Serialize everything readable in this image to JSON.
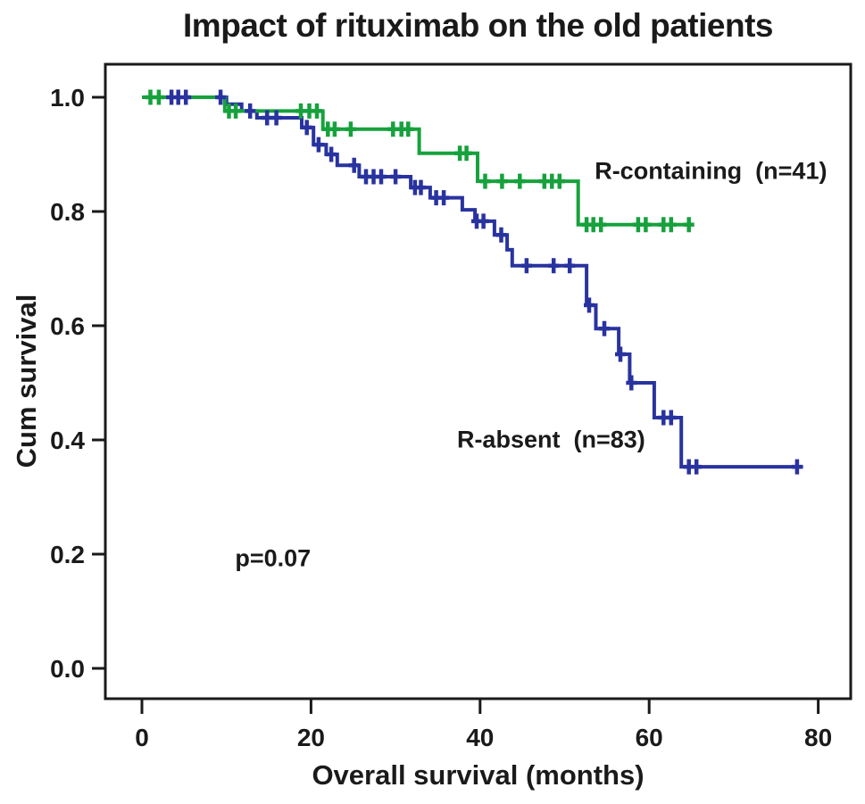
{
  "page": {
    "background": "#ffffff",
    "text_color": "#1a1a1a"
  },
  "chart_data": {
    "type": "line",
    "variant": "kaplan_meier_step",
    "title": "Impact of rituximab on the old patients",
    "xlabel": "Overall survival (months)",
    "ylabel": "Cum survival",
    "x_ticks": [
      0,
      20,
      40,
      60,
      80
    ],
    "y_ticks": [
      "0.0",
      "0.2",
      "0.4",
      "0.6",
      "0.8",
      "1.0"
    ],
    "xlim": [
      -4.3,
      83.8
    ],
    "ylim": [
      -0.053,
      1.058
    ],
    "grid": false,
    "frame_color": "#1a1a1a",
    "legend_position": "inline-annotations",
    "annotations": [
      {
        "text": "p=0.07",
        "x": 15.5,
        "y": 0.192
      }
    ],
    "series": [
      {
        "name": "R-containing (n=41)",
        "n": 41,
        "color": "#17A13D",
        "label": {
          "text": "R-containing  (n=41)",
          "x": 67.3,
          "y": 0.87
        },
        "steps": [
          [
            0,
            1.0
          ],
          [
            9.8,
            0.976
          ],
          [
            21.4,
            0.944
          ],
          [
            32.8,
            0.902
          ],
          [
            39.7,
            0.853
          ],
          [
            51.6,
            0.777
          ]
        ],
        "end_t": 65.0,
        "censors": [
          [
            1.0,
            1.0
          ],
          [
            2.0,
            1.0
          ],
          [
            10.3,
            0.976
          ],
          [
            11.1,
            0.976
          ],
          [
            18.8,
            0.976
          ],
          [
            19.8,
            0.976
          ],
          [
            20.7,
            0.976
          ],
          [
            22.0,
            0.944
          ],
          [
            22.8,
            0.944
          ],
          [
            24.7,
            0.944
          ],
          [
            29.7,
            0.944
          ],
          [
            30.7,
            0.944
          ],
          [
            31.5,
            0.944
          ],
          [
            37.6,
            0.902
          ],
          [
            38.4,
            0.902
          ],
          [
            40.6,
            0.853
          ],
          [
            42.6,
            0.853
          ],
          [
            44.7,
            0.853
          ],
          [
            47.6,
            0.853
          ],
          [
            48.5,
            0.853
          ],
          [
            49.4,
            0.853
          ],
          [
            52.6,
            0.777
          ],
          [
            53.4,
            0.777
          ],
          [
            54.3,
            0.777
          ],
          [
            58.7,
            0.777
          ],
          [
            59.6,
            0.777
          ],
          [
            61.7,
            0.777
          ],
          [
            62.6,
            0.777
          ],
          [
            64.7,
            0.777
          ]
        ]
      },
      {
        "name": "R-absent (n=83)",
        "n": 83,
        "color": "#29339F",
        "label": {
          "text": "R-absent  (n=83)",
          "x": 48.4,
          "y": 0.4
        },
        "steps": [
          [
            0,
            1.0
          ],
          [
            10.0,
            0.988
          ],
          [
            11.8,
            0.976
          ],
          [
            13.6,
            0.964
          ],
          [
            18.9,
            0.947
          ],
          [
            20.3,
            0.917
          ],
          [
            21.8,
            0.9
          ],
          [
            23.1,
            0.881
          ],
          [
            25.7,
            0.861
          ],
          [
            31.8,
            0.842
          ],
          [
            34.1,
            0.824
          ],
          [
            37.9,
            0.803
          ],
          [
            39.4,
            0.783
          ],
          [
            41.7,
            0.759
          ],
          [
            43.2,
            0.733
          ],
          [
            43.8,
            0.705
          ],
          [
            52.6,
            0.636
          ],
          [
            53.7,
            0.595
          ],
          [
            56.4,
            0.55
          ],
          [
            57.7,
            0.5
          ],
          [
            60.6,
            0.439
          ],
          [
            63.8,
            0.353
          ]
        ],
        "end_t": 78.2,
        "censors": [
          [
            3.5,
            1.0
          ],
          [
            4.3,
            1.0
          ],
          [
            5.2,
            1.0
          ],
          [
            9.3,
            1.0
          ],
          [
            12.8,
            0.976
          ],
          [
            14.8,
            0.964
          ],
          [
            15.9,
            0.964
          ],
          [
            19.5,
            0.947
          ],
          [
            20.9,
            0.917
          ],
          [
            22.4,
            0.9
          ],
          [
            25.1,
            0.881
          ],
          [
            26.5,
            0.861
          ],
          [
            27.4,
            0.861
          ],
          [
            28.3,
            0.861
          ],
          [
            30.0,
            0.861
          ],
          [
            32.3,
            0.842
          ],
          [
            33.0,
            0.842
          ],
          [
            34.8,
            0.824
          ],
          [
            35.7,
            0.824
          ],
          [
            39.6,
            0.783
          ],
          [
            40.4,
            0.783
          ],
          [
            42.5,
            0.759
          ],
          [
            45.5,
            0.705
          ],
          [
            48.7,
            0.705
          ],
          [
            50.6,
            0.705
          ],
          [
            52.9,
            0.636
          ],
          [
            54.7,
            0.595
          ],
          [
            56.6,
            0.55
          ],
          [
            57.9,
            0.5
          ],
          [
            61.7,
            0.439
          ],
          [
            62.6,
            0.439
          ],
          [
            64.7,
            0.353
          ],
          [
            65.6,
            0.353
          ],
          [
            77.5,
            0.353
          ]
        ]
      }
    ]
  }
}
